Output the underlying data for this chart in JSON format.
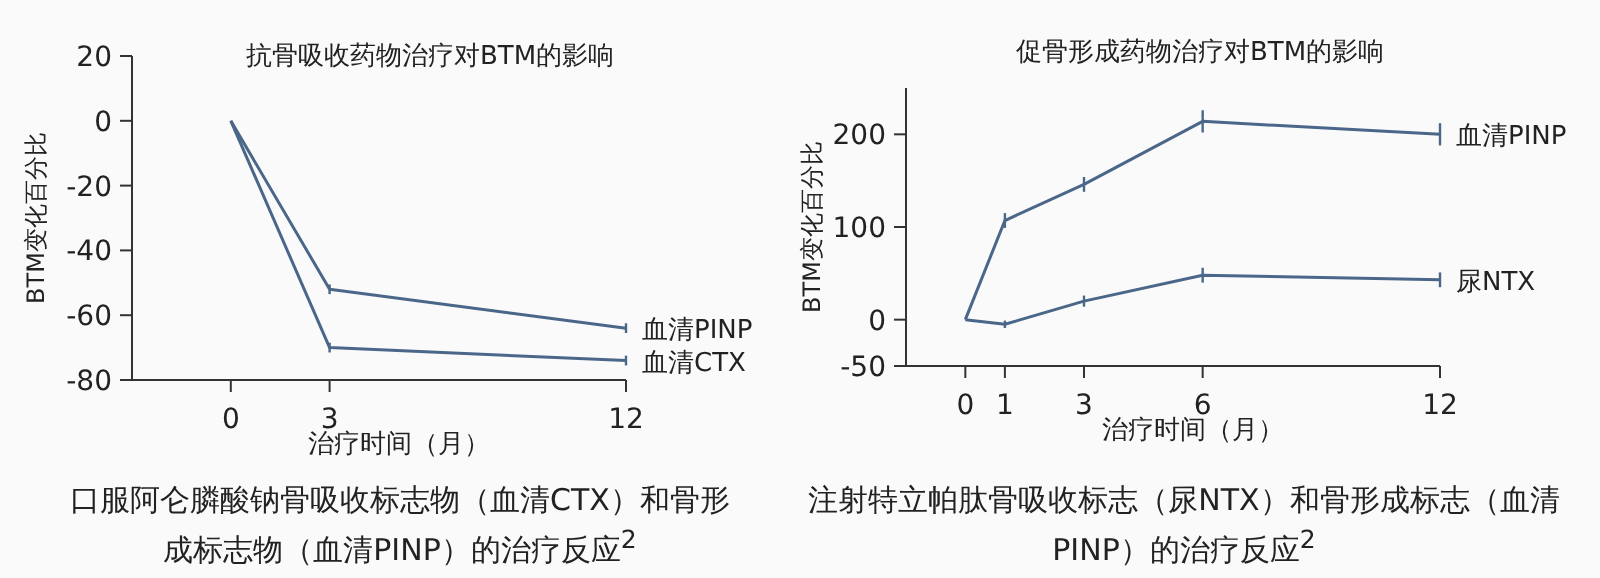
{
  "chart_data": [
    {
      "type": "line",
      "title": "抗骨吸收药物治疗对BTM的影响",
      "xlabel": "治疗时间（月）",
      "ylabel": "BTM变化百分比",
      "x": [
        0,
        3,
        12
      ],
      "xlim": [
        -3,
        12
      ],
      "xticks": [
        0,
        3,
        12
      ],
      "ylim": [
        -80,
        20
      ],
      "yticks": [
        -80,
        -60,
        -40,
        -20,
        0,
        20
      ],
      "series": [
        {
          "name": "血清PINP",
          "color": "#4a6688",
          "values": [
            0,
            -52,
            -64
          ],
          "errors": [
            null,
            1.5,
            1.5
          ]
        },
        {
          "name": "血清CTX",
          "color": "#4a6688",
          "values": [
            0,
            -70,
            -74
          ],
          "errors": [
            null,
            1.5,
            1.5
          ]
        }
      ],
      "annotations": [
        "口服阿仑膦酸钠骨吸收标志物（血清CTX）和骨形成标志物（血清PINP）的治疗反应$^{2}$"
      ]
    },
    {
      "type": "line",
      "title": "促骨形成药物治疗对BTM的影响",
      "xlabel": "治疗时间（月）",
      "ylabel": "BTM变化百分比",
      "x": [
        0,
        1,
        3,
        6,
        12
      ],
      "xlim": [
        -1.5,
        12
      ],
      "xticks": [
        0,
        1,
        3,
        6,
        12
      ],
      "ylim": [
        -50,
        250
      ],
      "yticks": [
        -50,
        0,
        100,
        200
      ],
      "series": [
        {
          "name": "血清PINP",
          "color": "#4a6688",
          "values": [
            0,
            107,
            146,
            214,
            200
          ],
          "errors": [
            null,
            8,
            8,
            12,
            12
          ]
        },
        {
          "name": "尿NTX",
          "color": "#4a6688",
          "values": [
            0,
            -5,
            20,
            48,
            43
          ],
          "errors": [
            null,
            4,
            6,
            8,
            8
          ]
        }
      ],
      "annotations": [
        "注射特立帕肽骨吸收标志（尿NTX）和骨形成标志（血清PINP）的治疗反应$^{2}$"
      ]
    }
  ]
}
